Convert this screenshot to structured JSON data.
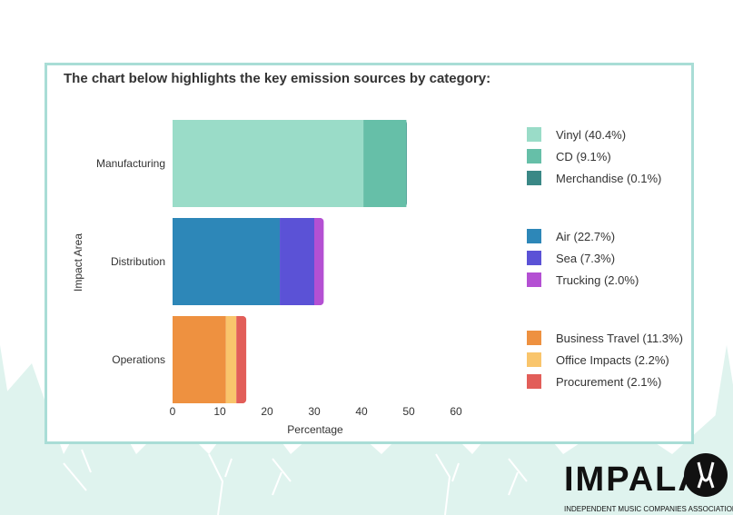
{
  "chart_data": {
    "type": "bar",
    "stacked": true,
    "orientation": "horizontal",
    "title": "The chart below highlights the key emission sources by category:",
    "xlabel": "Percentage",
    "ylabel": "Impact Area",
    "xlim": [
      0,
      60
    ],
    "xticks": [
      "0",
      "10",
      "20",
      "30",
      "40",
      "50",
      "60"
    ],
    "grid": false,
    "legend_position": "right",
    "groups": [
      {
        "category": "Manufacturing",
        "segments": [
          {
            "label": "Vinyl (40.4%)",
            "value": 40.4,
            "color": "#9adcc8"
          },
          {
            "label": "CD (9.1%)",
            "value": 9.1,
            "color": "#66bfa8"
          },
          {
            "label": "Merchandise (0.1%)",
            "value": 0.1,
            "color": "#3a8886"
          }
        ]
      },
      {
        "category": "Distribution",
        "segments": [
          {
            "label": "Air (22.7%)",
            "value": 22.7,
            "color": "#2d87b8"
          },
          {
            "label": "Sea (7.3%)",
            "value": 7.3,
            "color": "#5b52d6"
          },
          {
            "label": "Trucking (2.0%)",
            "value": 2.0,
            "color": "#b450d3"
          }
        ]
      },
      {
        "category": "Operations",
        "segments": [
          {
            "label": "Business Travel (11.3%)",
            "value": 11.3,
            "color": "#ee9140"
          },
          {
            "label": "Office Impacts (2.2%)",
            "value": 2.2,
            "color": "#f9c56c"
          },
          {
            "label": "Procurement (2.1%)",
            "value": 2.1,
            "color": "#e25e59"
          }
        ]
      }
    ]
  },
  "logo": {
    "name": "IMPALA",
    "subtitle": "INDEPENDENT MUSIC COMPANIES ASSOCIATION"
  },
  "colors": {
    "background_shape": "#dff3ee",
    "card_border": "#a9ddd6",
    "logo": "#111111"
  }
}
